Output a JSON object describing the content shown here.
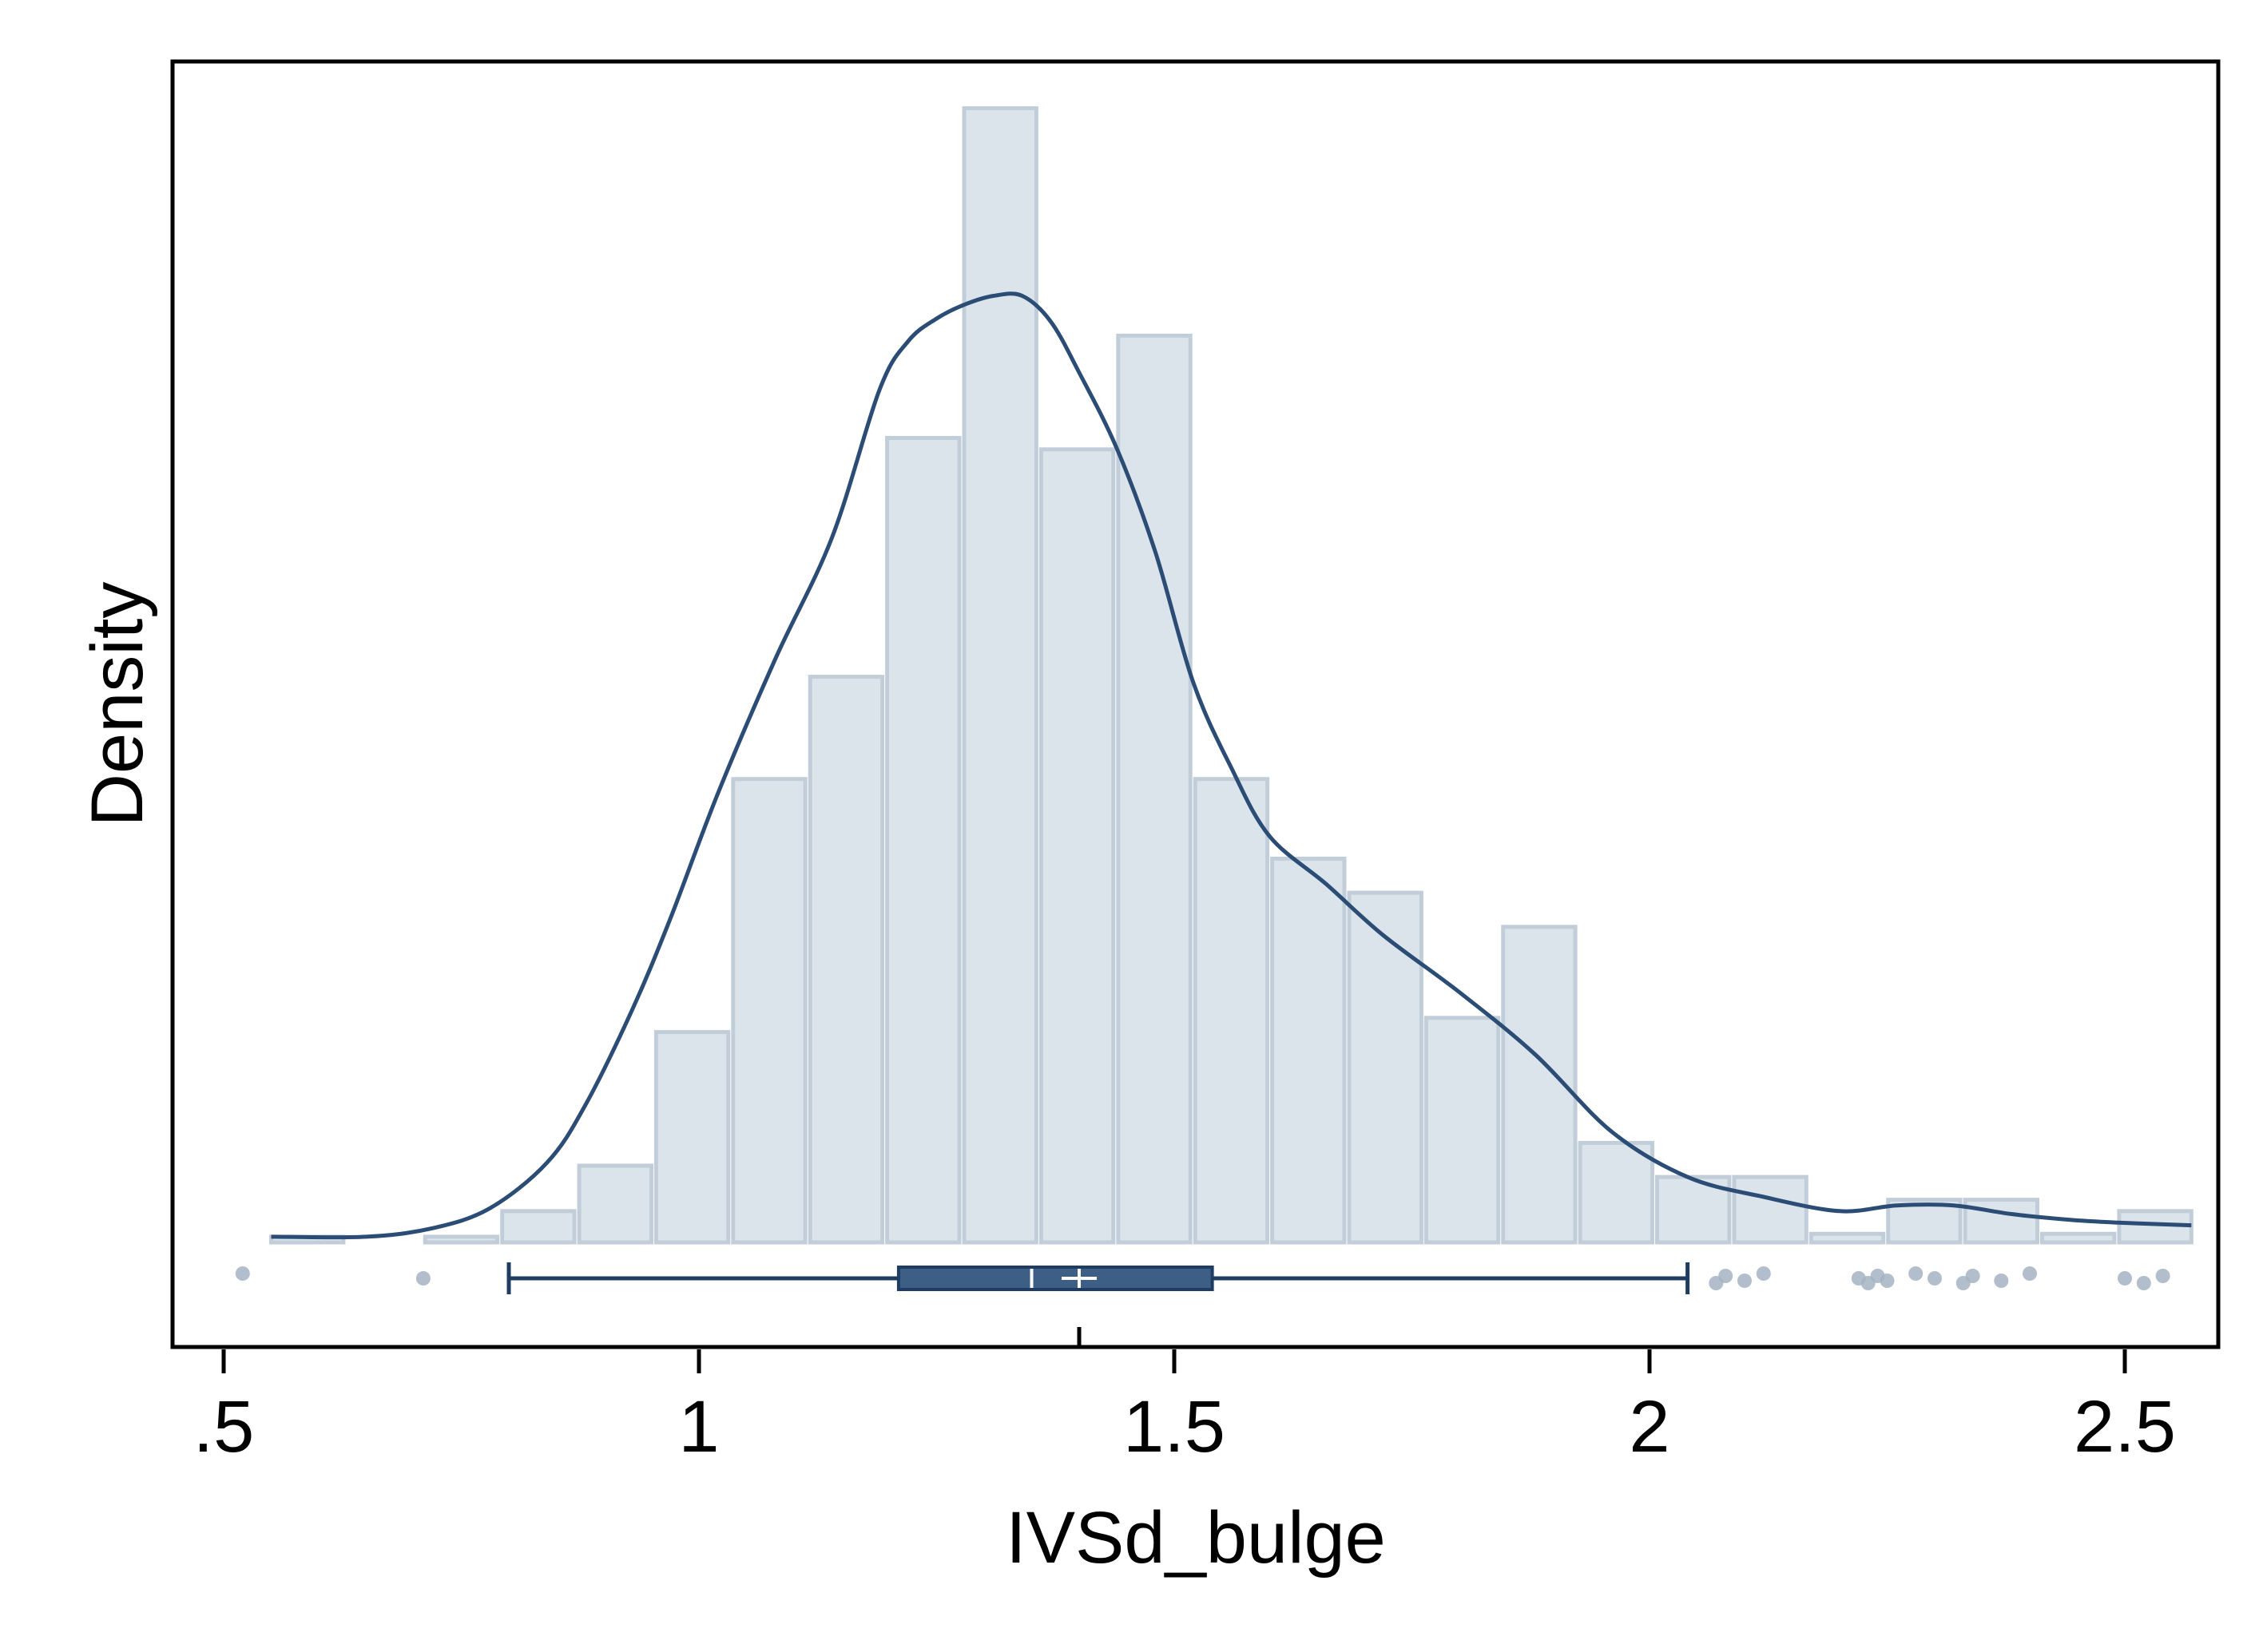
{
  "chart_data": {
    "type": "histogram",
    "xlabel": "IVSd_bulge",
    "ylabel": "Density",
    "xlim": [
      0.47,
      2.6
    ],
    "ylim": [
      0,
      3.9
    ],
    "x_ticks": [
      {
        "value": 0.5,
        "label": ".5"
      },
      {
        "value": 1.0,
        "label": "1"
      },
      {
        "value": 1.5,
        "label": "1.5"
      },
      {
        "value": 2.0,
        "label": "2"
      },
      {
        "value": 2.5,
        "label": "2.5"
      }
    ],
    "y_ticks": [],
    "grid": false,
    "colors": {
      "bar_fill": "#dce4eb",
      "bar_stroke": "#c1ced9",
      "kde_line": "#2b4d75",
      "box_fill": "#3d5f85",
      "box_stroke": "#1f3d63",
      "outlier": "#a4b3c2",
      "mean_marker": "#ffffff"
    },
    "histogram": {
      "bin_width": 0.081,
      "bins": [
        {
          "x0": 0.55,
          "density": 0.02
        },
        {
          "x0": 0.712,
          "density": 0.02
        },
        {
          "x0": 0.793,
          "density": 0.11
        },
        {
          "x0": 0.874,
          "density": 0.27
        },
        {
          "x0": 0.955,
          "density": 0.74
        },
        {
          "x0": 1.036,
          "density": 1.63
        },
        {
          "x0": 1.117,
          "density": 1.99
        },
        {
          "x0": 1.198,
          "density": 2.83
        },
        {
          "x0": 1.279,
          "density": 3.99
        },
        {
          "x0": 1.36,
          "density": 2.79
        },
        {
          "x0": 1.441,
          "density": 3.19
        },
        {
          "x0": 1.522,
          "density": 1.63
        },
        {
          "x0": 1.603,
          "density": 1.35
        },
        {
          "x0": 1.684,
          "density": 1.23
        },
        {
          "x0": 1.765,
          "density": 0.79
        },
        {
          "x0": 1.846,
          "density": 1.11
        },
        {
          "x0": 1.927,
          "density": 0.35
        },
        {
          "x0": 2.008,
          "density": 0.23
        },
        {
          "x0": 2.089,
          "density": 0.23
        },
        {
          "x0": 2.17,
          "density": 0.03
        },
        {
          "x0": 2.251,
          "density": 0.15
        },
        {
          "x0": 2.332,
          "density": 0.15
        },
        {
          "x0": 2.413,
          "density": 0.03
        },
        {
          "x0": 2.494,
          "density": 0.11
        }
      ]
    },
    "kde": {
      "x": [
        0.55,
        0.65,
        0.72,
        0.78,
        0.84,
        0.88,
        0.93,
        0.97,
        1.02,
        1.08,
        1.14,
        1.19,
        1.22,
        1.25,
        1.28,
        1.31,
        1.34,
        1.37,
        1.4,
        1.44,
        1.48,
        1.52,
        1.56,
        1.6,
        1.66,
        1.72,
        1.8,
        1.88,
        1.96,
        2.04,
        2.12,
        2.2,
        2.26,
        2.32,
        2.38,
        2.44,
        2.49,
        2.57
      ],
      "density": [
        0.02,
        0.02,
        0.05,
        0.12,
        0.28,
        0.48,
        0.82,
        1.14,
        1.58,
        2.05,
        2.48,
        3.0,
        3.17,
        3.25,
        3.3,
        3.33,
        3.33,
        3.24,
        3.06,
        2.79,
        2.43,
        1.97,
        1.67,
        1.43,
        1.26,
        1.08,
        0.88,
        0.66,
        0.39,
        0.23,
        0.16,
        0.11,
        0.13,
        0.13,
        0.1,
        0.08,
        0.07,
        0.06
      ]
    },
    "boxplot": {
      "whisker_low": 0.8,
      "q1": 1.21,
      "median": 1.35,
      "mean": 1.4,
      "q3": 1.54,
      "whisker_high": 2.04,
      "outliers": [
        0.52,
        0.71,
        2.07,
        2.08,
        2.1,
        2.12,
        2.22,
        2.23,
        2.24,
        2.25,
        2.28,
        2.3,
        2.33,
        2.34,
        2.37,
        2.4,
        2.5,
        2.52,
        2.54
      ]
    }
  }
}
